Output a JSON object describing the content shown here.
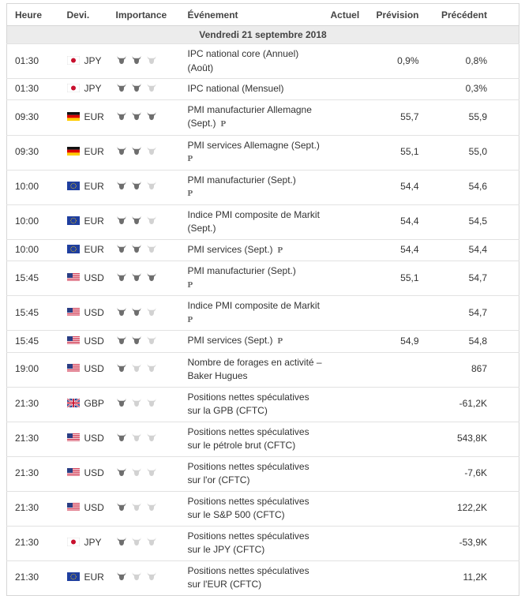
{
  "header": {
    "time": "Heure",
    "currency": "Devi.",
    "importance": "Importance",
    "event": "Événement",
    "actual": "Actuel",
    "forecast": "Prévision",
    "previous": "Précédent"
  },
  "table": {
    "date": "Vendredi 21 septembre 2018",
    "rows": [
      {
        "time": "01:30",
        "currency": "JPY",
        "importance": 2,
        "event": [
          "IPC national core (Annuel)",
          "(Août)"
        ],
        "forecast": "0,9%",
        "previous": "0,8%"
      },
      {
        "time": "01:30",
        "currency": "JPY",
        "importance": 2,
        "event": [
          "IPC national (Mensuel)"
        ],
        "previous": "0,3%"
      },
      {
        "time": "09:30",
        "currency": "EUR",
        "importance": 3,
        "event": [
          "PMI manufacturier Allemagne",
          "(Sept.)"
        ],
        "note": "P",
        "forecast": "55,7",
        "previous": "55,9"
      },
      {
        "time": "09:30",
        "currency": "EUR",
        "importance": 2,
        "event": [
          "PMI services Allemagne (Sept.)"
        ],
        "note": "P",
        "forecast": "55,1",
        "previous": "55,0"
      },
      {
        "time": "10:00",
        "currency": "EUR",
        "importance": 2,
        "event": [
          "PMI manufacturier (Sept.)"
        ],
        "note": "P",
        "forecast": "54,4",
        "previous": "54,6"
      },
      {
        "time": "10:00",
        "currency": "EUR",
        "importance": 2,
        "event": [
          "Indice PMI composite de Markit",
          "(Sept.)"
        ],
        "forecast": "54,4",
        "previous": "54,5"
      },
      {
        "time": "10:00",
        "currency": "EUR",
        "importance": 2,
        "event": [
          "PMI services (Sept.)"
        ],
        "note": "P",
        "forecast": "54,4",
        "previous": "54,4"
      },
      {
        "time": "15:45",
        "currency": "USD",
        "importance": 3,
        "event": [
          "PMI manufacturier (Sept.)"
        ],
        "note": "P",
        "forecast": "55,1",
        "previous": "54,7"
      },
      {
        "time": "15:45",
        "currency": "USD",
        "importance": 2,
        "event": [
          "Indice PMI composite de Markit"
        ],
        "note": "P",
        "previous": "54,7"
      },
      {
        "time": "15:45",
        "currency": "USD",
        "importance": 2,
        "event": [
          "PMI services (Sept.)"
        ],
        "note": "P",
        "forecast": "54,9",
        "previous": "54,8"
      },
      {
        "time": "19:00",
        "currency": "USD",
        "importance": 1,
        "event": [
          "Nombre de forages en activité –",
          "Baker Hugues"
        ],
        "previous": "867"
      },
      {
        "time": "21:30",
        "currency": "GBP",
        "importance": 1,
        "event": [
          "Positions nettes spéculatives",
          "sur la GPB (CFTC)"
        ],
        "previous": "-61,2K"
      },
      {
        "time": "21:30",
        "currency": "USD",
        "importance": 1,
        "event": [
          "Positions nettes spéculatives",
          "sur le pétrole brut (CFTC)"
        ],
        "previous": "543,8K"
      },
      {
        "time": "21:30",
        "currency": "USD",
        "importance": 1,
        "event": [
          "Positions nettes spéculatives",
          "sur l'or (CFTC)"
        ],
        "previous": "-7,6K"
      },
      {
        "time": "21:30",
        "currency": "USD",
        "importance": 1,
        "event": [
          "Positions nettes spéculatives",
          "sur le S&P 500 (CFTC)"
        ],
        "previous": "122,2K"
      },
      {
        "time": "21:30",
        "currency": "JPY",
        "importance": 1,
        "event": [
          "Positions nettes spéculatives",
          "sur le JPY (CFTC)"
        ],
        "previous": "-53,9K"
      },
      {
        "time": "21:30",
        "currency": "EUR",
        "importance": 1,
        "event": [
          "Positions nettes spéculatives",
          "sur l'EUR (CFTC)"
        ],
        "previous": "11,2K"
      }
    ]
  }
}
